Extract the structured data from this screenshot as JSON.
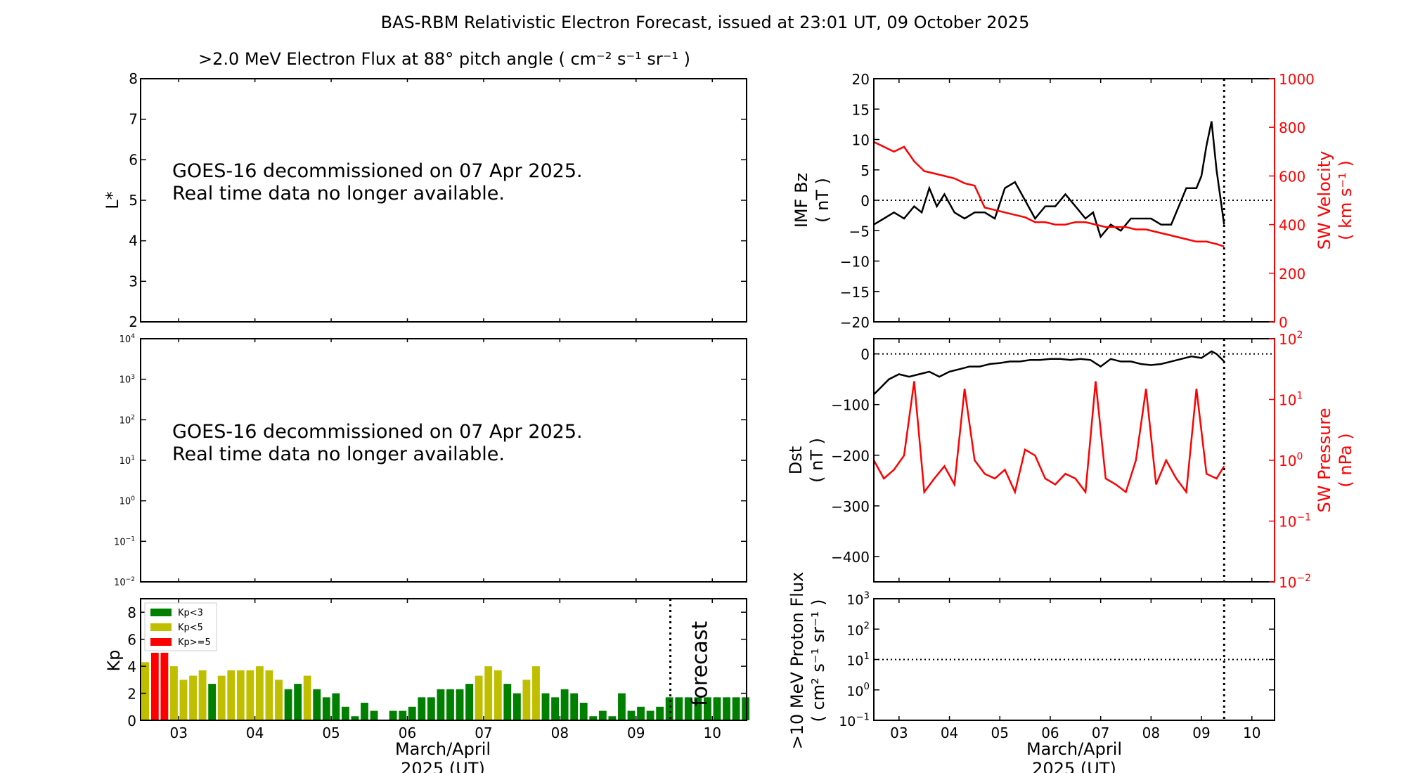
{
  "figure": {
    "title": "BAS-RBM Relativistic Electron Forecast, issued at 23:01 UT, 09 October 2025",
    "flux_title": ">2.0 MeV Electron Flux at 88° pitch angle ( cm⁻² s⁻¹ sr⁻¹ )",
    "message_line1": "GOES-16 decommissioned on 07 Apr 2025.",
    "message_line2": "Real time data no longer available.",
    "xlabel_line1": "March/April",
    "xlabel_line2": "2025 (UT)",
    "forecast_label": "forecast",
    "colors": {
      "black": "#000000",
      "red": "#ff0000",
      "green": "#008000",
      "yellow": "#bfbf00",
      "forecast_text": "#c8c8c8"
    }
  },
  "chart_data": [
    {
      "id": "lstar",
      "type": "line",
      "title": ">2.0 MeV Electron Flux at 88° pitch angle ( cm⁻² s⁻¹ sr⁻¹ )",
      "ylabel": "L*",
      "ylim": [
        2,
        8
      ],
      "yticks": [
        "2",
        "3",
        "4",
        "5",
        "6",
        "7",
        "8"
      ],
      "series": []
    },
    {
      "id": "flux_log",
      "type": "line",
      "ylabel": "",
      "ylim_exponent": [
        -2,
        4
      ],
      "yscale": "log",
      "yticks_exp": [
        "−2",
        "−1",
        "0",
        "1",
        "2",
        "3",
        "4"
      ],
      "series": []
    },
    {
      "id": "kp",
      "type": "bar",
      "ylabel": "Kp",
      "ylim": [
        0,
        9
      ],
      "yticks": [
        "0",
        "2",
        "4",
        "6",
        "8"
      ],
      "xlim_days": [
        2.5,
        10.45
      ],
      "xticks": [
        "03",
        "04",
        "05",
        "06",
        "07",
        "08",
        "09",
        "10"
      ],
      "bar_width_days": 0.1,
      "forecast_start_day": 9.45,
      "legend": [
        "Kp<3",
        "Kp<5",
        "Kp>=5"
      ],
      "legend_position": "upper-left",
      "values": [
        4.3,
        5.0,
        5.0,
        4.0,
        3.0,
        3.3,
        3.7,
        2.7,
        3.3,
        3.7,
        3.7,
        3.7,
        4.0,
        3.7,
        3.0,
        2.3,
        2.7,
        3.3,
        2.3,
        1.7,
        2.0,
        1.0,
        0.3,
        1.3,
        0.7,
        0,
        0.7,
        0.7,
        1.0,
        1.7,
        1.7,
        2.3,
        2.3,
        2.3,
        2.7,
        3.3,
        4.0,
        3.7,
        2.7,
        2.0,
        3.0,
        4.0,
        2.0,
        1.7,
        2.3,
        2.0,
        1.3,
        0.3,
        0.7,
        0.3,
        2.0,
        0.7,
        1.0,
        0.7,
        1.0,
        1.7,
        1.7,
        1.7,
        1.7,
        1.7,
        1.7,
        1.7,
        1.7,
        1.7
      ]
    },
    {
      "id": "imf_sw",
      "type": "line",
      "ylabel": "IMF Bz",
      "ylabel_unit": "( nT )",
      "ylim": [
        -20,
        20
      ],
      "yticks": [
        "−20",
        "−15",
        "−10",
        "−5",
        "0",
        "5",
        "10",
        "15",
        "20"
      ],
      "y2label": "SW Velocity",
      "y2label_unit": "( km s⁻¹ )",
      "y2lim": [
        0,
        1000
      ],
      "y2ticks": [
        "0",
        "200",
        "400",
        "600",
        "800",
        "1000"
      ],
      "xlim_days": [
        2.5,
        10.45
      ],
      "xticks": [
        "03",
        "04",
        "05",
        "06",
        "07",
        "08",
        "09",
        "10"
      ],
      "series": [
        {
          "name": "IMF Bz",
          "axis": "left",
          "color": "#000000",
          "x": [
            2.5,
            2.7,
            2.9,
            3.1,
            3.3,
            3.45,
            3.6,
            3.75,
            3.9,
            4.1,
            4.3,
            4.5,
            4.7,
            4.9,
            5.1,
            5.3,
            5.5,
            5.7,
            5.9,
            6.1,
            6.3,
            6.5,
            6.7,
            6.85,
            7.0,
            7.2,
            7.4,
            7.6,
            7.8,
            8.0,
            8.2,
            8.4,
            8.55,
            8.7,
            8.9,
            9.0,
            9.1,
            9.2,
            9.3,
            9.45
          ],
          "y": [
            -4,
            -3,
            -2,
            -3,
            -1,
            -2,
            2,
            -1,
            1,
            -2,
            -3,
            -2,
            -2,
            -3,
            2,
            3,
            0,
            -3,
            -1,
            -1,
            1,
            -1,
            -3,
            -2,
            -6,
            -4,
            -5,
            -3,
            -3,
            -3,
            -4,
            -4,
            -1,
            2,
            2,
            4,
            9,
            13,
            5,
            -4
          ]
        },
        {
          "name": "SW Velocity",
          "axis": "right",
          "color": "#ff0000",
          "x": [
            2.5,
            2.7,
            2.9,
            3.1,
            3.3,
            3.5,
            3.7,
            3.9,
            4.1,
            4.3,
            4.5,
            4.7,
            4.9,
            5.1,
            5.3,
            5.5,
            5.7,
            5.9,
            6.1,
            6.3,
            6.5,
            6.7,
            6.9,
            7.1,
            7.3,
            7.5,
            7.7,
            7.9,
            8.1,
            8.3,
            8.5,
            8.7,
            8.9,
            9.1,
            9.3,
            9.45
          ],
          "y": [
            740,
            720,
            700,
            720,
            660,
            620,
            610,
            600,
            590,
            570,
            560,
            470,
            460,
            450,
            440,
            430,
            410,
            410,
            400,
            400,
            410,
            410,
            400,
            390,
            390,
            390,
            380,
            380,
            370,
            360,
            350,
            340,
            330,
            330,
            320,
            310
          ]
        }
      ]
    },
    {
      "id": "dst_pressure",
      "type": "line",
      "ylabel": "Dst",
      "ylabel_unit": "( nT )",
      "ylim": [
        -450,
        30
      ],
      "yticks": [
        "−400",
        "−300",
        "−200",
        "−100",
        "0"
      ],
      "y2label": "SW Pressure",
      "y2label_unit": "( nPa )",
      "y2scale": "log",
      "y2lim_exponent": [
        -2,
        2
      ],
      "y2ticks_exp": [
        "−2",
        "−1",
        "0",
        "1",
        "2"
      ],
      "xlim_days": [
        2.5,
        10.45
      ],
      "xticks": [
        "03",
        "04",
        "05",
        "06",
        "07",
        "08",
        "09",
        "10"
      ],
      "series": [
        {
          "name": "Dst",
          "axis": "left",
          "color": "#000000",
          "x": [
            2.5,
            2.6,
            2.8,
            3.0,
            3.2,
            3.4,
            3.6,
            3.8,
            4.0,
            4.2,
            4.4,
            4.6,
            4.8,
            5.0,
            5.2,
            5.4,
            5.6,
            5.8,
            6.0,
            6.2,
            6.4,
            6.6,
            6.8,
            7.0,
            7.2,
            7.4,
            7.6,
            7.8,
            8.0,
            8.2,
            8.4,
            8.6,
            8.8,
            9.0,
            9.2,
            9.3,
            9.45
          ],
          "y": [
            -80,
            -70,
            -50,
            -40,
            -45,
            -40,
            -35,
            -45,
            -35,
            -30,
            -25,
            -25,
            -20,
            -18,
            -15,
            -15,
            -12,
            -12,
            -10,
            -10,
            -12,
            -10,
            -12,
            -25,
            -10,
            -15,
            -15,
            -20,
            -22,
            -20,
            -15,
            -10,
            -5,
            -8,
            5,
            0,
            -15
          ]
        },
        {
          "name": "SW Pressure",
          "axis": "right",
          "color": "#ff0000",
          "x": [
            2.5,
            2.7,
            2.9,
            3.1,
            3.3,
            3.5,
            3.7,
            3.9,
            4.1,
            4.3,
            4.5,
            4.7,
            4.9,
            5.1,
            5.3,
            5.5,
            5.7,
            5.9,
            6.1,
            6.3,
            6.5,
            6.7,
            6.9,
            7.1,
            7.3,
            7.5,
            7.7,
            7.9,
            8.1,
            8.3,
            8.5,
            8.7,
            8.9,
            9.1,
            9.3,
            9.45
          ],
          "y": [
            1.0,
            0.5,
            0.7,
            1.2,
            20,
            0.3,
            0.5,
            0.8,
            0.4,
            15,
            1.0,
            0.6,
            0.5,
            0.7,
            0.3,
            1.5,
            1.2,
            0.5,
            0.4,
            0.6,
            0.5,
            0.3,
            20,
            0.5,
            0.4,
            0.3,
            1.0,
            15,
            0.4,
            1.0,
            0.5,
            0.3,
            15,
            0.6,
            0.5,
            0.8
          ]
        }
      ]
    },
    {
      "id": "proton",
      "type": "line",
      "ylabel": ">10 MeV Proton Flux",
      "ylabel_unit": "( cm² s⁻¹ sr⁻¹ )",
      "yscale": "log",
      "ylim_exponent": [
        -1,
        3
      ],
      "yticks_exp": [
        "−1",
        "0",
        "1",
        "2",
        "3"
      ],
      "threshold": 10,
      "xlim_days": [
        2.5,
        10.45
      ],
      "xticks": [
        "03",
        "04",
        "05",
        "06",
        "07",
        "08",
        "09",
        "10"
      ],
      "series": []
    }
  ]
}
